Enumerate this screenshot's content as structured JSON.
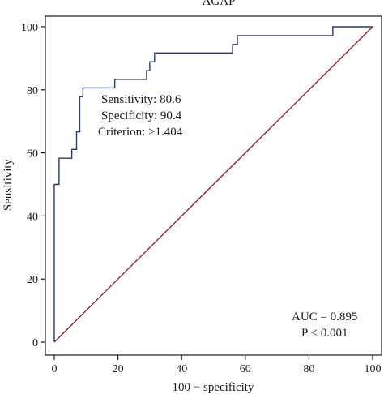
{
  "chart_data": {
    "type": "line",
    "title": "AGAP",
    "xlabel": "100 − specificity",
    "ylabel": "Sensitivity",
    "xlim": [
      0,
      100
    ],
    "ylim": [
      0,
      100
    ],
    "x_ticks": [
      "0",
      "20",
      "40",
      "60",
      "80",
      "100"
    ],
    "y_ticks": [
      "0",
      "20",
      "40",
      "60",
      "80",
      "100"
    ],
    "grid": false,
    "colors": {
      "roc": "#2b3a67",
      "reference": "#8b1a1a",
      "axis": "#1a1a1a"
    },
    "series": [
      {
        "x": [
          0,
          0,
          1.5,
          1.5,
          5.5,
          5.5,
          7,
          7,
          8,
          8,
          9,
          9,
          19,
          19,
          29,
          29,
          30,
          30,
          31.5,
          31.5,
          56,
          56,
          57.5,
          57.5,
          87.5,
          87.5,
          100
        ],
        "y": [
          0,
          50,
          50,
          58.3,
          58.3,
          61.1,
          61.1,
          66.7,
          66.7,
          77.8,
          77.8,
          80.6,
          80.6,
          83.3,
          83.3,
          86.1,
          86.1,
          88.9,
          88.9,
          91.7,
          91.7,
          94.4,
          94.4,
          97.2,
          97.2,
          100,
          100
        ]
      },
      {
        "x": [
          0,
          100
        ],
        "y": [
          0,
          100
        ]
      }
    ],
    "annotations": {
      "sensitivity": "Sensitivity: 80.6",
      "specificity": "Specificity: 90.4",
      "criterion": "Criterion: >1.404",
      "auc": "AUC = 0.895",
      "p_value": "P < 0.001"
    }
  }
}
